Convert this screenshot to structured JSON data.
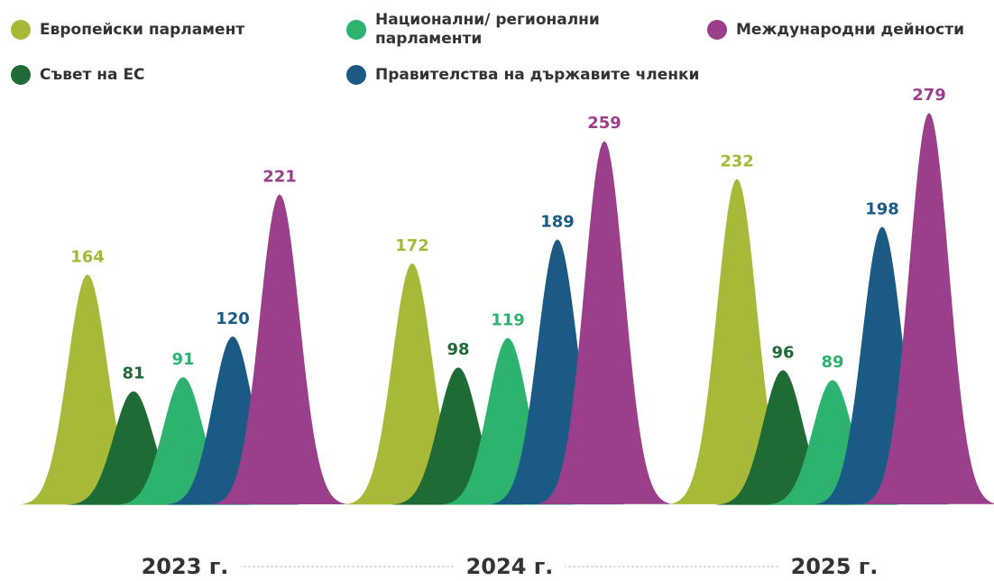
{
  "chart_data": {
    "type": "bell",
    "categories": [
      "2023 г.",
      "2024 г.",
      "2025 г."
    ],
    "series": [
      {
        "name": "Европейски парламент",
        "color": "#a8b93a",
        "values": [
          164,
          172,
          232
        ]
      },
      {
        "name": "Съвет на ЕС",
        "color": "#1e6b35",
        "values": [
          81,
          98,
          96
        ]
      },
      {
        "name": "Национални/ регионални парламенти",
        "color": "#2db36f",
        "values": [
          91,
          119,
          89
        ]
      },
      {
        "name": "Правителства на държавите членки",
        "color": "#1a5a85",
        "values": [
          120,
          189,
          198
        ]
      },
      {
        "name": "Международни дейности",
        "color": "#9b3f8c",
        "values": [
          221,
          259,
          279
        ]
      }
    ],
    "legend": "top"
  }
}
